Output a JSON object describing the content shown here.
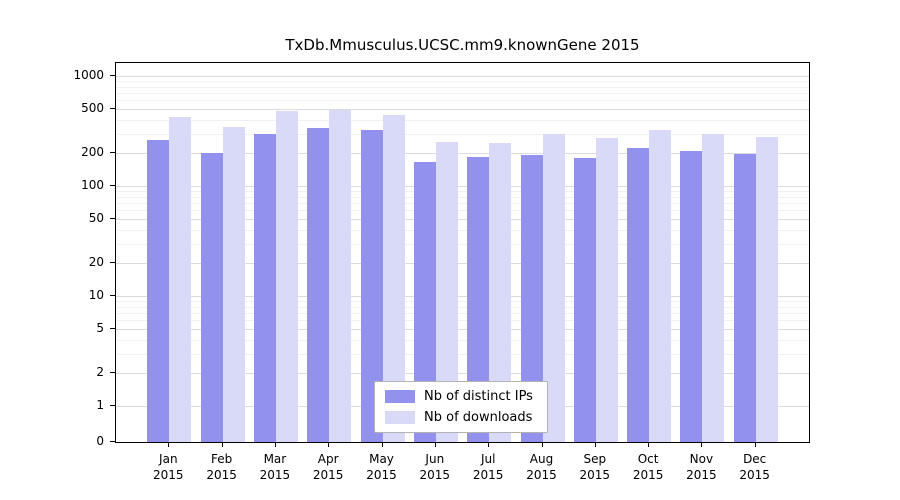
{
  "chart_data": {
    "type": "bar",
    "title": "TxDb.Mmusculus.UCSC.mm9.knownGene 2015",
    "categories": [
      "Jan",
      "Feb",
      "Mar",
      "Apr",
      "May",
      "Jun",
      "Jul",
      "Aug",
      "Sep",
      "Oct",
      "Nov",
      "Dec"
    ],
    "year": "2015",
    "series": [
      {
        "name": "Nb of distinct IPs",
        "color": "#9292ee",
        "values": [
          260,
          200,
          300,
          340,
          320,
          165,
          185,
          190,
          180,
          220,
          210,
          195
        ]
      },
      {
        "name": "Nb of downloads",
        "color": "#d9d9f8",
        "values": [
          420,
          345,
          485,
          490,
          440,
          250,
          245,
          300,
          275,
          325,
          295,
          280
        ]
      }
    ],
    "yaxis": {
      "scale": "log",
      "ticks": [
        0,
        1,
        2,
        5,
        10,
        20,
        50,
        100,
        200,
        500,
        1000
      ],
      "range_top": 1000
    },
    "grid": true,
    "legend_position": "bottom-center"
  }
}
